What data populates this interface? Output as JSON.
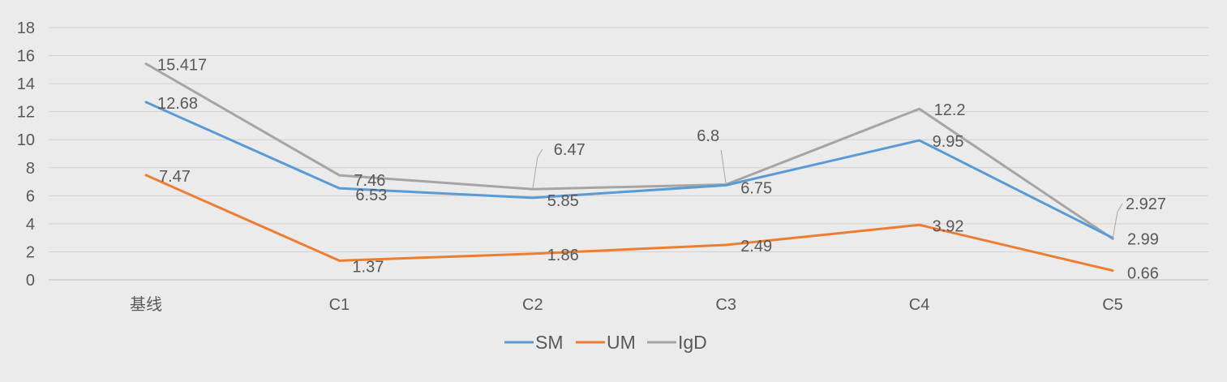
{
  "chart_data": {
    "type": "line",
    "title": "",
    "xlabel": "",
    "ylabel": "",
    "categories": [
      "基线",
      "C1",
      "C2",
      "C3",
      "C4",
      "C5"
    ],
    "ylim": [
      0,
      18
    ],
    "yticks": [
      "0",
      "2",
      "4",
      "6",
      "8",
      "10",
      "12",
      "14",
      "16",
      "18"
    ],
    "grid": true,
    "legend": "bottom-center",
    "series": [
      {
        "name": "SM",
        "color": "#5b9bd5",
        "values": [
          12.68,
          6.53,
          5.85,
          6.75,
          9.95,
          2.99
        ],
        "labels": [
          "12.68",
          "6.53",
          "5.85",
          "6.75",
          "9.95",
          "2.99"
        ]
      },
      {
        "name": "UM",
        "color": "#ed7d31",
        "values": [
          7.47,
          1.37,
          1.86,
          2.49,
          3.92,
          0.66
        ],
        "labels": [
          "7.47",
          "1.37",
          "1.86",
          "2.49",
          "3.92",
          "0.66"
        ]
      },
      {
        "name": "IgD",
        "color": "#a5a5a5",
        "values": [
          15.417,
          7.46,
          6.47,
          6.8,
          12.2,
          2.927
        ],
        "labels": [
          "15.417",
          "7.46",
          "6.47",
          "6.8",
          "12.2",
          "2.927"
        ]
      }
    ]
  }
}
